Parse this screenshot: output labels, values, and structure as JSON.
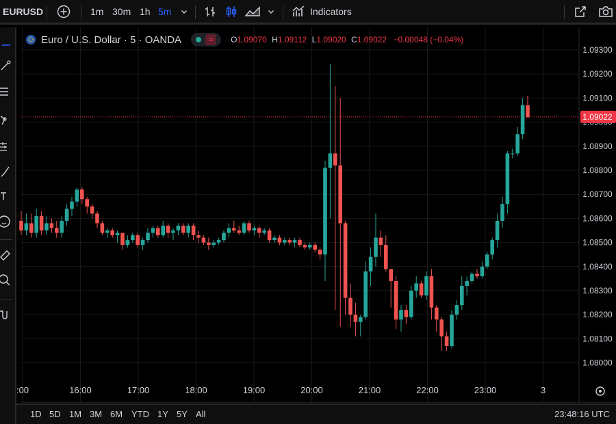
{
  "toolbar": {
    "symbol": "EURUSD",
    "intervals": [
      "1m",
      "30m",
      "1h",
      "5m"
    ],
    "active_interval": "5m",
    "indicators_label": "Indicators",
    "icons": [
      "add-symbol-icon",
      "chevron-down-icon",
      "bar-style-icon",
      "candle-style-icon",
      "area-style-icon",
      "indicators-icon",
      "snapshot-icon",
      "camera-icon"
    ]
  },
  "legend": {
    "title": "Euro / U.S. Dollar · 5 · OANDA",
    "o_label": "O",
    "o_value": "1.09070",
    "h_label": "H",
    "h_value": "1.09112",
    "l_label": "L",
    "l_value": "1.09020",
    "c_label": "C",
    "c_value": "1.09022",
    "change": "−0.00048 (−0.04%)"
  },
  "colors": {
    "up": "#26a69a",
    "down": "#ef5350",
    "price_label": "#f23645",
    "active": "#2962ff"
  },
  "price_axis": {
    "ticks": [
      "1.09300",
      "1.09200",
      "1.09100",
      "1.09000",
      "1.08900",
      "1.08800",
      "1.08700",
      "1.08600",
      "1.08500",
      "1.08400",
      "1.08300",
      "1.08200",
      "1.08100",
      "1.08000"
    ],
    "last_price": "1.09022"
  },
  "time_axis": {
    "labels": [
      ":00",
      "16:00",
      "17:00",
      "18:00",
      "19:00",
      "20:00",
      "21:00",
      "22:00",
      "23:00",
      "3"
    ]
  },
  "bottom": {
    "ranges": [
      "1D",
      "5D",
      "1M",
      "3M",
      "6M",
      "YTD",
      "1Y",
      "5Y",
      "All"
    ],
    "clock": "23:48:16 UTC"
  },
  "chart_data": {
    "type": "candlestick",
    "interval": "5m",
    "grid": true,
    "ylim": [
      1.0795,
      1.0935
    ],
    "last_price": 1.09022,
    "candles": [
      [
        1.0859,
        1.0863,
        1.0853,
        1.0855
      ],
      [
        1.0855,
        1.0862,
        1.0853,
        1.0858
      ],
      [
        1.0858,
        1.0862,
        1.0852,
        1.0854
      ],
      [
        1.0854,
        1.0864,
        1.0852,
        1.0861
      ],
      [
        1.0861,
        1.0863,
        1.0853,
        1.0855
      ],
      [
        1.0855,
        1.0861,
        1.0853,
        1.0858
      ],
      [
        1.0858,
        1.086,
        1.0854,
        1.0856
      ],
      [
        1.0856,
        1.0859,
        1.0852,
        1.0854
      ],
      [
        1.0854,
        1.0861,
        1.0852,
        1.0859
      ],
      [
        1.0859,
        1.0866,
        1.0857,
        1.0864
      ],
      [
        1.0864,
        1.0869,
        1.0861,
        1.0867
      ],
      [
        1.0867,
        1.0873,
        1.0865,
        1.0872
      ],
      [
        1.0872,
        1.0873,
        1.0866,
        1.0868
      ],
      [
        1.0868,
        1.0869,
        1.0862,
        1.0865
      ],
      [
        1.0865,
        1.0866,
        1.086,
        1.0862
      ],
      [
        1.0862,
        1.0863,
        1.0856,
        1.0858
      ],
      [
        1.0858,
        1.0859,
        1.0853,
        1.0854
      ],
      [
        1.0854,
        1.0856,
        1.0852,
        1.0855
      ],
      [
        1.0855,
        1.0856,
        1.0852,
        1.0853
      ],
      [
        1.0853,
        1.0855,
        1.085,
        1.0854
      ],
      [
        1.0854,
        1.0854,
        1.0847,
        1.0849
      ],
      [
        1.0849,
        1.0853,
        1.0848,
        1.0851
      ],
      [
        1.0851,
        1.0854,
        1.085,
        1.0853
      ],
      [
        1.0853,
        1.0854,
        1.0848,
        1.0849
      ],
      [
        1.0849,
        1.0852,
        1.0847,
        1.0851
      ],
      [
        1.0851,
        1.0856,
        1.085,
        1.0854
      ],
      [
        1.0854,
        1.0857,
        1.0852,
        1.0856
      ],
      [
        1.0856,
        1.0857,
        1.0852,
        1.0853
      ],
      [
        1.0853,
        1.0859,
        1.0852,
        1.0857
      ],
      [
        1.0857,
        1.0858,
        1.0852,
        1.0854
      ],
      [
        1.0854,
        1.0856,
        1.0851,
        1.0855
      ],
      [
        1.0855,
        1.0858,
        1.0853,
        1.0857
      ],
      [
        1.0857,
        1.0858,
        1.0853,
        1.0854
      ],
      [
        1.0854,
        1.0858,
        1.0852,
        1.0857
      ],
      [
        1.0857,
        1.0858,
        1.0851,
        1.0853
      ],
      [
        1.0853,
        1.0855,
        1.085,
        1.0852
      ],
      [
        1.0852,
        1.0853,
        1.0849,
        1.085
      ],
      [
        1.085,
        1.0852,
        1.0847,
        1.0849
      ],
      [
        1.0849,
        1.0851,
        1.0848,
        1.085
      ],
      [
        1.085,
        1.0852,
        1.0849,
        1.0851
      ],
      [
        1.0851,
        1.0855,
        1.085,
        1.0854
      ],
      [
        1.0854,
        1.0858,
        1.0852,
        1.0856
      ],
      [
        1.0856,
        1.0859,
        1.0854,
        1.0855
      ],
      [
        1.0855,
        1.0857,
        1.0853,
        1.0854
      ],
      [
        1.0854,
        1.0859,
        1.0853,
        1.0858
      ],
      [
        1.0858,
        1.0859,
        1.0854,
        1.0855
      ],
      [
        1.0855,
        1.0857,
        1.0853,
        1.0856
      ],
      [
        1.0856,
        1.0857,
        1.0852,
        1.0854
      ],
      [
        1.0854,
        1.0856,
        1.0853,
        1.0855
      ],
      [
        1.0855,
        1.0856,
        1.085,
        1.0851
      ],
      [
        1.0851,
        1.0853,
        1.085,
        1.0852
      ],
      [
        1.0852,
        1.0853,
        1.0849,
        1.085
      ],
      [
        1.085,
        1.0852,
        1.0849,
        1.0851
      ],
      [
        1.0851,
        1.0852,
        1.0849,
        1.085
      ],
      [
        1.085,
        1.0852,
        1.0848,
        1.0851
      ],
      [
        1.0851,
        1.0852,
        1.0848,
        1.0849
      ],
      [
        1.0849,
        1.085,
        1.0847,
        1.0848
      ],
      [
        1.0848,
        1.085,
        1.0847,
        1.0849
      ],
      [
        1.0849,
        1.085,
        1.0846,
        1.0847
      ],
      [
        1.0847,
        1.0848,
        1.0843,
        1.0845
      ],
      [
        1.0845,
        1.0884,
        1.0834,
        1.0881
      ],
      [
        1.0881,
        1.0924,
        1.086,
        1.0887
      ],
      [
        1.0887,
        1.0915,
        1.0822,
        1.0882
      ],
      [
        1.0882,
        1.091,
        1.0815,
        1.0858
      ],
      [
        1.0858,
        1.0859,
        1.082,
        1.0827
      ],
      [
        1.0827,
        1.0833,
        1.0815,
        1.082
      ],
      [
        1.082,
        1.0825,
        1.0811,
        1.0817
      ],
      [
        1.0817,
        1.082,
        1.0811,
        1.0819
      ],
      [
        1.0819,
        1.0842,
        1.0818,
        1.0838
      ],
      [
        1.0838,
        1.0848,
        1.0832,
        1.0844
      ],
      [
        1.0844,
        1.0862,
        1.084,
        1.0852
      ],
      [
        1.0852,
        1.0855,
        1.0844,
        1.0849
      ],
      [
        1.0849,
        1.0853,
        1.0838,
        1.0839
      ],
      [
        1.0839,
        1.0839,
        1.0823,
        1.0834
      ],
      [
        1.0834,
        1.0836,
        1.0814,
        1.0818
      ],
      [
        1.0818,
        1.0824,
        1.0813,
        1.0822
      ],
      [
        1.0822,
        1.0824,
        1.0816,
        1.0819
      ],
      [
        1.0819,
        1.0832,
        1.0818,
        1.083
      ],
      [
        1.083,
        1.0836,
        1.0827,
        1.0833
      ],
      [
        1.0833,
        1.0834,
        1.0827,
        1.0828
      ],
      [
        1.0828,
        1.0838,
        1.0826,
        1.0836
      ],
      [
        1.0836,
        1.0839,
        1.0818,
        1.0823
      ],
      [
        1.0823,
        1.0824,
        1.0813,
        1.0818
      ],
      [
        1.0818,
        1.0819,
        1.0805,
        1.0811
      ],
      [
        1.0811,
        1.0813,
        1.0805,
        1.0807
      ],
      [
        1.0807,
        1.0822,
        1.0806,
        1.082
      ],
      [
        1.082,
        1.0826,
        1.0818,
        1.0824
      ],
      [
        1.0824,
        1.0836,
        1.0822,
        1.0832
      ],
      [
        1.0832,
        1.0836,
        1.0828,
        1.0834
      ],
      [
        1.0834,
        1.0838,
        1.0833,
        1.0837
      ],
      [
        1.0837,
        1.0839,
        1.0835,
        1.0836
      ],
      [
        1.0836,
        1.0842,
        1.0835,
        1.084
      ],
      [
        1.084,
        1.0846,
        1.0839,
        1.0845
      ],
      [
        1.0845,
        1.0852,
        1.0843,
        1.0851
      ],
      [
        1.0851,
        1.0862,
        1.0848,
        1.0859
      ],
      [
        1.0859,
        1.0869,
        1.0856,
        1.0866
      ],
      [
        1.0866,
        1.0888,
        1.0862,
        1.0887
      ],
      [
        1.0887,
        1.0889,
        1.0885,
        1.0887
      ],
      [
        1.0887,
        1.0898,
        1.0886,
        1.0895
      ],
      [
        1.0895,
        1.091,
        1.0893,
        1.0907
      ],
      [
        1.0907,
        1.0911,
        1.0902,
        1.0902
      ]
    ],
    "last_candle_ohlc": [
      1.0907,
      1.09112,
      1.0902,
      1.09022
    ]
  }
}
